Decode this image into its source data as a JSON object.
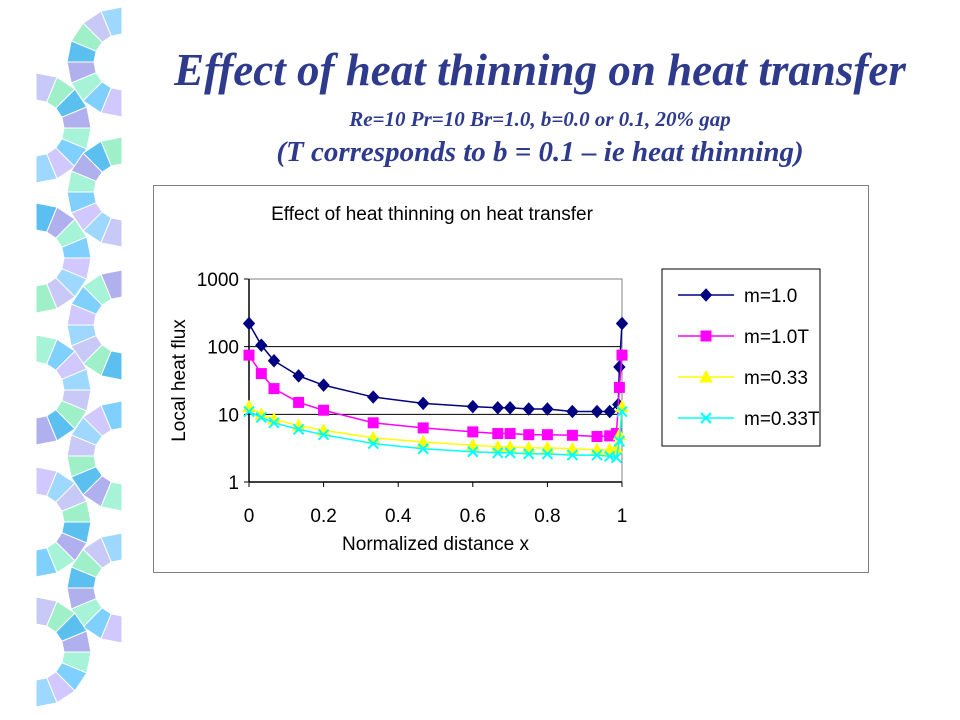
{
  "slide": {
    "title": "Effect of heat thinning on heat transfer",
    "subtitle1": "Re=10 Pr=10 Br=1.0, b=0.0 or 0.1, 20% gap",
    "subtitle2": "(T corresponds to b = 0.1 – ie heat thinning)"
  },
  "chart_data": {
    "type": "line",
    "title": "Effect of heat thinning on heat transfer",
    "xlabel": "Normalized distance x",
    "ylabel": "Local heat flux",
    "xlim": [
      0,
      1
    ],
    "ylim": [
      1,
      1000
    ],
    "yscale": "log",
    "xticks": [
      {
        "v": 0,
        "label": "0"
      },
      {
        "v": 0.2,
        "label": "0.2"
      },
      {
        "v": 0.4,
        "label": "0.4"
      },
      {
        "v": 0.6,
        "label": "0.6"
      },
      {
        "v": 0.8,
        "label": "0.8"
      },
      {
        "v": 1,
        "label": "1"
      }
    ],
    "yticks": [
      {
        "v": 1,
        "label": "1"
      },
      {
        "v": 10,
        "label": "10"
      },
      {
        "v": 100,
        "label": "100"
      },
      {
        "v": 1000,
        "label": "1000"
      }
    ],
    "grid": "horizontal",
    "legend_position": "right",
    "series": [
      {
        "name": "m=1.0",
        "color": "#000080",
        "marker": "diamond",
        "x": [
          0,
          0.033,
          0.067,
          0.133,
          0.2,
          0.333,
          0.467,
          0.6,
          0.667,
          0.7,
          0.75,
          0.8,
          0.867,
          0.933,
          0.967,
          0.99,
          0.993,
          1.0
        ],
        "y": [
          220,
          105,
          62,
          37,
          27,
          18,
          14.5,
          13,
          12.5,
          12.5,
          12,
          12,
          11,
          11,
          11,
          14,
          50,
          220
        ]
      },
      {
        "name": "m=1.0T",
        "color": "#ff00ff",
        "marker": "square",
        "x": [
          0,
          0.033,
          0.067,
          0.133,
          0.2,
          0.333,
          0.467,
          0.6,
          0.667,
          0.7,
          0.75,
          0.8,
          0.867,
          0.933,
          0.967,
          0.985,
          0.993,
          1.0
        ],
        "y": [
          75,
          40,
          24,
          15,
          11.5,
          7.5,
          6.3,
          5.5,
          5.2,
          5.2,
          5.0,
          5.0,
          4.9,
          4.7,
          4.8,
          5.2,
          25,
          75
        ]
      },
      {
        "name": "m=0.33",
        "color": "#ffff00",
        "marker": "triangle",
        "x": [
          0,
          0.033,
          0.067,
          0.133,
          0.2,
          0.333,
          0.467,
          0.6,
          0.667,
          0.7,
          0.75,
          0.8,
          0.867,
          0.933,
          0.967,
          0.985,
          0.993,
          1.0
        ],
        "y": [
          13,
          10,
          8.5,
          6.8,
          5.8,
          4.5,
          3.9,
          3.5,
          3.3,
          3.3,
          3.2,
          3.2,
          3.1,
          3.0,
          3.0,
          3.2,
          5,
          13
        ]
      },
      {
        "name": "m=0.33T",
        "color": "#00ffff",
        "marker": "x",
        "x": [
          0,
          0.033,
          0.067,
          0.133,
          0.2,
          0.333,
          0.467,
          0.6,
          0.667,
          0.7,
          0.75,
          0.8,
          0.867,
          0.933,
          0.967,
          0.985,
          0.993,
          1.0
        ],
        "y": [
          11,
          9,
          7.5,
          6,
          5,
          3.7,
          3.1,
          2.8,
          2.7,
          2.7,
          2.6,
          2.6,
          2.5,
          2.5,
          2.4,
          2.3,
          4,
          11
        ]
      }
    ]
  }
}
